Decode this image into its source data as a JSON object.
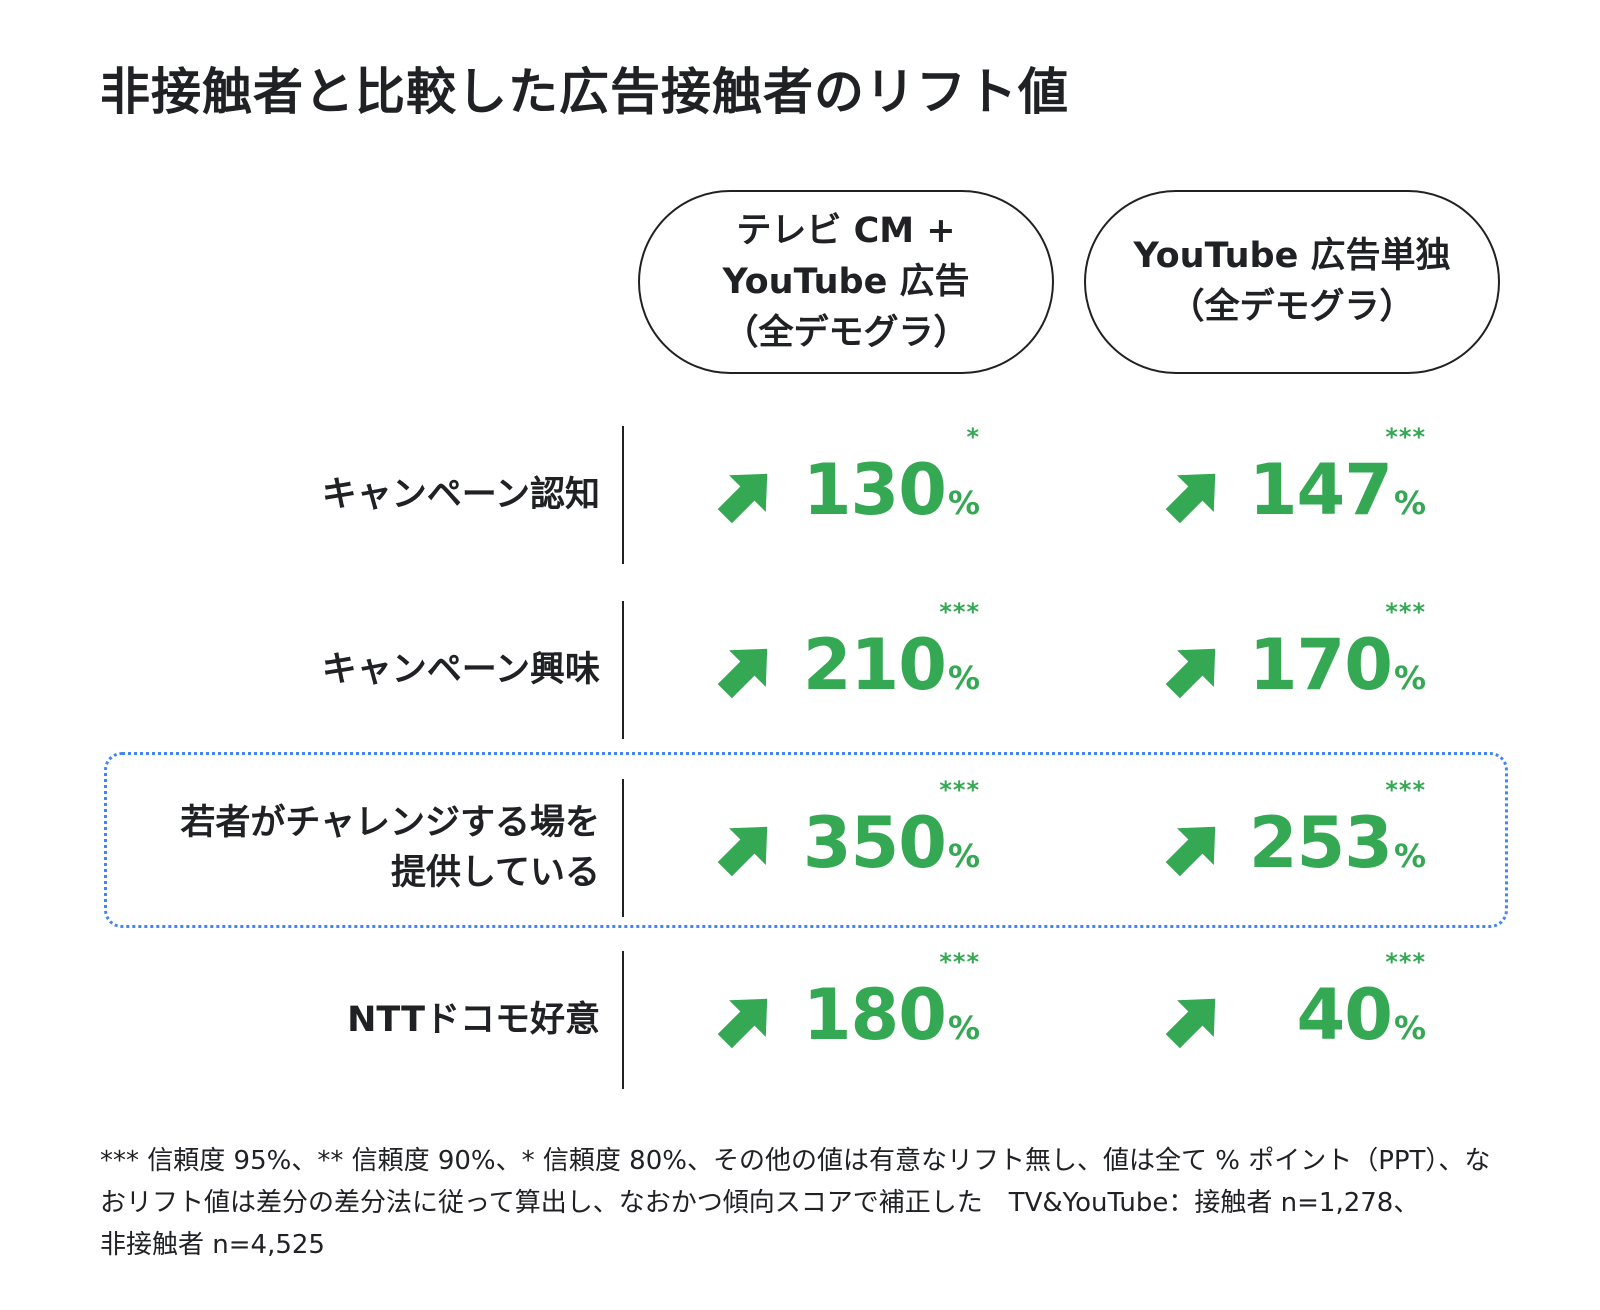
{
  "title": "非接触者と比較した広告接触者のリフト値",
  "columns": [
    "テレビ CM +\nYouTube 広告\n（全デモグラ）",
    "YouTube 広告単独\n（全デモグラ）"
  ],
  "rows": [
    "キャンペーン認知",
    "キャンペーン興味",
    "若者がチャレンジする場を\n提供している",
    "NTTドコモ好意"
  ],
  "percent_symbol": "%",
  "significance": [
    [
      "*",
      "***"
    ],
    [
      "***",
      "***"
    ],
    [
      "***",
      "***"
    ],
    [
      "***",
      "***"
    ]
  ],
  "colors": {
    "value_green": "#34a853",
    "highlight_blue": "#4285f4",
    "text": "#202124"
  },
  "icons": {
    "up_arrow": "arrow-up-right-icon"
  },
  "highlighted_row": 2,
  "footnote": "*** 信頼度 95%、** 信頼度 90%、* 信頼度 80%、その他の値は有意なリフト無し、値は全て % ポイント（PPT）、な\nおリフト値は差分の差分法に従って算出し、なおかつ傾向スコアで補正した　TV&YouTube：接触者 n=1,278、\n非接触者 n=4,525",
  "chart_data": {
    "type": "table",
    "title": "非接触者と比較した広告接触者のリフト値",
    "categories": [
      "キャンペーン認知",
      "キャンペーン興味",
      "若者がチャレンジする場を提供している",
      "NTTドコモ好意"
    ],
    "unit": "%",
    "series": [
      {
        "name": "テレビ CM + YouTube 広告（全デモグラ）",
        "values": [
          130,
          210,
          350,
          180
        ]
      },
      {
        "name": "YouTube 広告単独（全デモグラ）",
        "values": [
          147,
          170,
          253,
          40
        ]
      }
    ]
  }
}
